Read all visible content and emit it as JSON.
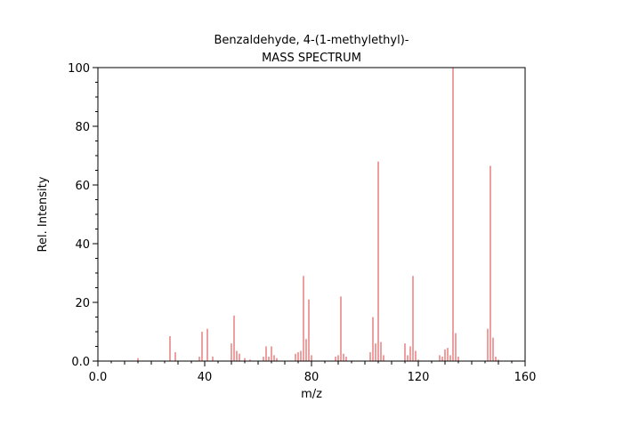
{
  "chart_data": {
    "type": "bar",
    "title": "Benzaldehyde, 4-(1-methylethyl)-",
    "subtitle": "MASS SPECTRUM",
    "xlabel": "m/z",
    "ylabel": "Rel. Intensity",
    "xlim": [
      0,
      160
    ],
    "ylim": [
      0,
      100
    ],
    "x_ticks": [
      0,
      40,
      80,
      120,
      160
    ],
    "x_tick_labels": [
      "0.0",
      "40",
      "80",
      "120",
      "160"
    ],
    "y_ticks": [
      0,
      20,
      40,
      60,
      80,
      100
    ],
    "y_tick_labels": [
      "0.0",
      "20",
      "40",
      "60",
      "80",
      "100"
    ],
    "grid": false,
    "bar_color": "#e05050",
    "x": [
      15,
      27,
      29,
      38,
      39,
      41,
      43,
      50,
      51,
      52,
      53,
      55,
      57,
      62,
      63,
      64,
      65,
      66,
      67,
      74,
      75,
      76,
      77,
      78,
      79,
      80,
      89,
      90,
      91,
      92,
      93,
      102,
      103,
      104,
      105,
      106,
      107,
      115,
      116,
      117,
      118,
      119,
      120,
      128,
      129,
      130,
      131,
      132,
      133,
      134,
      135,
      146,
      147,
      148,
      149,
      150
    ],
    "values": [
      1,
      8.5,
      3,
      1.5,
      10,
      11,
      1.5,
      6,
      15.5,
      3.5,
      2.5,
      1,
      0.5,
      1.5,
      5,
      1.5,
      5,
      2,
      1,
      2.5,
      3,
      3.5,
      29,
      7.5,
      21,
      2,
      1.5,
      2,
      22,
      2.5,
      1.5,
      3,
      15,
      6,
      68,
      6.5,
      2,
      6,
      2,
      5,
      29,
      3.5,
      0.5,
      2,
      1.5,
      4,
      4.5,
      2,
      100,
      9.5,
      1.5,
      11,
      66.5,
      8,
      1.5,
      0.5
    ]
  }
}
